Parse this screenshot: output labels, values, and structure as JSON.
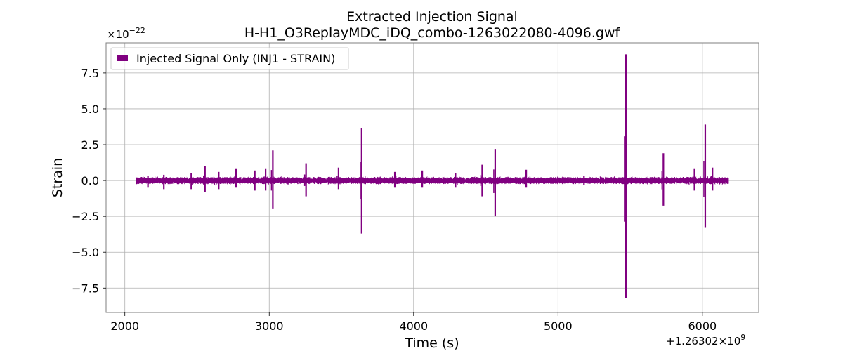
{
  "chart_data": {
    "type": "line",
    "title": "Extracted Injection Signal",
    "subtitle": "H-H1_O3ReplayMDC_iDQ_combo-1263022080-4096.gwf",
    "xlabel": "Time (s)",
    "ylabel": "Strain",
    "x_offset_label": "+1.26302×10",
    "x_offset_exp": "9",
    "y_scale_label": "×10",
    "y_scale_exp": "−22",
    "xlim": [
      1870,
      6390
    ],
    "ylim": [
      -9.2,
      9.6
    ],
    "x_ticks": [
      2000,
      3000,
      4000,
      5000,
      6000
    ],
    "x_tick_labels": [
      "2000",
      "3000",
      "4000",
      "5000",
      "6000"
    ],
    "y_ticks": [
      -7.5,
      -5.0,
      -2.5,
      0.0,
      2.5,
      5.0,
      7.5
    ],
    "y_tick_labels": [
      "−7.5",
      "−5.0",
      "−2.5",
      "0.0",
      "2.5",
      "5.0",
      "7.5"
    ],
    "grid": true,
    "legend_position": "top-left",
    "series": [
      {
        "name": "Injected Signal Only (INJ1 - STRAIN)",
        "color": "#800080",
        "x_range": [
          2080,
          6180
        ],
        "baseline_noise": 0.25,
        "bursts": [
          {
            "x": 2160,
            "max": 0.3,
            "min": -0.5
          },
          {
            "x": 2270,
            "max": 0.4,
            "min": -0.6
          },
          {
            "x": 2460,
            "max": 0.5,
            "min": -0.6
          },
          {
            "x": 2555,
            "max": 1.0,
            "min": -0.8
          },
          {
            "x": 2650,
            "max": 0.6,
            "min": -0.6
          },
          {
            "x": 2770,
            "max": 0.8,
            "min": -0.5
          },
          {
            "x": 2900,
            "max": 0.7,
            "min": -0.7
          },
          {
            "x": 2975,
            "max": 0.8,
            "min": -0.7
          },
          {
            "x": 3025,
            "max": 2.1,
            "min": -2.0
          },
          {
            "x": 3255,
            "max": 1.2,
            "min": -1.1
          },
          {
            "x": 3480,
            "max": 0.9,
            "min": -0.6
          },
          {
            "x": 3640,
            "max": 3.65,
            "min": -3.7
          },
          {
            "x": 3870,
            "max": 0.6,
            "min": -0.5
          },
          {
            "x": 4060,
            "max": 0.7,
            "min": -0.5
          },
          {
            "x": 4290,
            "max": 0.5,
            "min": -0.5
          },
          {
            "x": 4475,
            "max": 1.1,
            "min": -1.1
          },
          {
            "x": 4565,
            "max": 2.2,
            "min": -2.5
          },
          {
            "x": 4780,
            "max": 0.75,
            "min": -0.5
          },
          {
            "x": 5180,
            "max": 0.3,
            "min": -0.3
          },
          {
            "x": 5470,
            "max": 8.8,
            "min": -8.2
          },
          {
            "x": 5730,
            "max": 1.9,
            "min": -1.75
          },
          {
            "x": 5945,
            "max": 0.8,
            "min": -0.7
          },
          {
            "x": 6020,
            "max": 3.9,
            "min": -3.3
          },
          {
            "x": 6070,
            "max": 0.9,
            "min": -0.7
          }
        ]
      }
    ]
  }
}
